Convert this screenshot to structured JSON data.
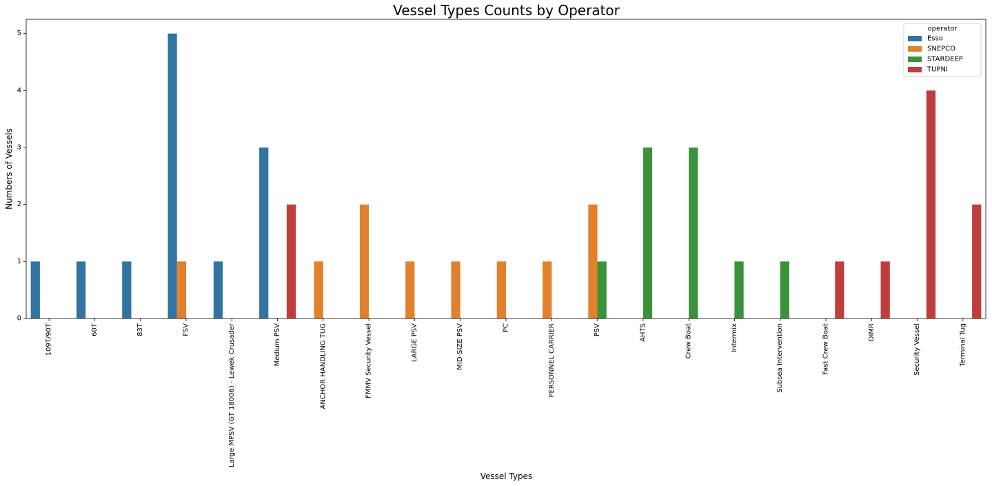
{
  "chart_data": {
    "type": "bar",
    "title": "Vessel Types Counts by Operator",
    "xlabel": "Vessel Types",
    "ylabel": "Numbers of Vessels",
    "ylim": [
      0,
      5.25
    ],
    "yticks": [
      0,
      1,
      2,
      3,
      4,
      5
    ],
    "categories": [
      "109T/90T",
      "60T",
      "83T",
      "FSV",
      "Large MPSV (GT 18006) -  Lewek Crusader",
      "Medium PSV",
      "ANCHOR HANDLING TUG",
      "FMMV Security Vessel",
      "LARGE PSV",
      "MID-SIZE PSV",
      "PC",
      "PERSONNEL CARRIER",
      "PSV",
      "AHTS",
      "Crew Boat",
      "Intermix",
      "Subsea Intervention",
      "Fast Crew Boat",
      "OIMR",
      "Security Vessel",
      "Terminal Tug"
    ],
    "series": [
      {
        "name": "Esso",
        "color": "#3274a1",
        "values": [
          1,
          1,
          1,
          5,
          1,
          3,
          0,
          0,
          0,
          0,
          0,
          0,
          0,
          0,
          0,
          0,
          0,
          0,
          0,
          0,
          0
        ]
      },
      {
        "name": "SNEPCO",
        "color": "#e1812c",
        "values": [
          0,
          0,
          0,
          1,
          0,
          0,
          1,
          2,
          1,
          1,
          1,
          1,
          2,
          0,
          0,
          0,
          0,
          0,
          0,
          0,
          0
        ]
      },
      {
        "name": "STARDEEP",
        "color": "#3a923a",
        "values": [
          0,
          0,
          0,
          0,
          0,
          0,
          0,
          0,
          0,
          0,
          0,
          0,
          1,
          3,
          3,
          1,
          1,
          0,
          0,
          0,
          0
        ]
      },
      {
        "name": "TUPNI",
        "color": "#c03d3e",
        "values": [
          0,
          0,
          0,
          0,
          0,
          2,
          0,
          0,
          0,
          0,
          0,
          0,
          0,
          0,
          0,
          0,
          0,
          1,
          1,
          4,
          2
        ]
      }
    ],
    "legend": {
      "title": "operator",
      "position": "top-right"
    },
    "grid": false
  }
}
